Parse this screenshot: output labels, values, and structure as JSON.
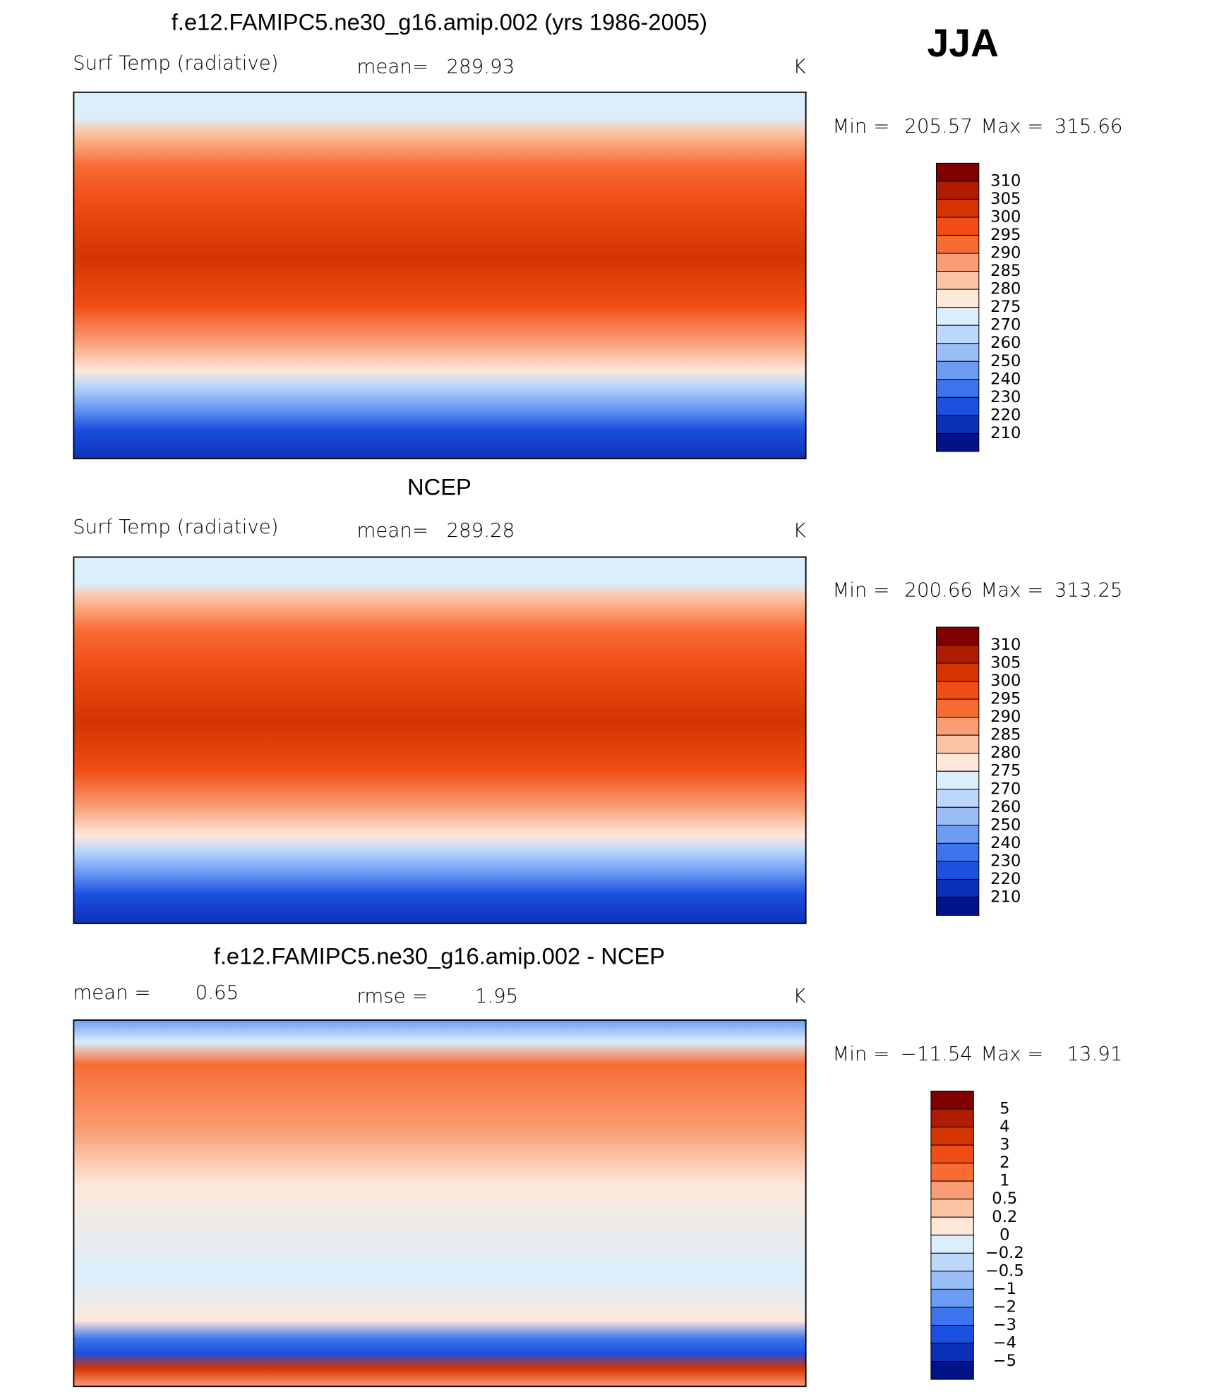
{
  "season": "JJA",
  "panels": [
    {
      "title": "f.e12.FAMIPC5.ne30_g16.amip.002 (yrs 1986-2005)",
      "left_label": "Surf Temp (radiative)",
      "stat_label": "mean=",
      "stat_value": "289.93",
      "units": "K",
      "min_label": "Min =",
      "min": "205.57",
      "max_label": "Max =",
      "max": "315.66",
      "colorbar": {
        "levels": [
          "310",
          "305",
          "300",
          "295",
          "290",
          "285",
          "280",
          "275",
          "270",
          "260",
          "250",
          "240",
          "230",
          "220",
          "210"
        ],
        "colors": [
          "#800000",
          "#b01c00",
          "#d43400",
          "#f04c14",
          "#f86c34",
          "#fa9c74",
          "#fcc4a4",
          "#fde8da",
          "#daeefc",
          "#bed8fb",
          "#9cbef8",
          "#6c9cf4",
          "#3c74ee",
          "#1c50e0",
          "#0c30b8",
          "#001488"
        ]
      }
    },
    {
      "title": "NCEP",
      "left_label": "Surf Temp (radiative)",
      "stat_label": "mean=",
      "stat_value": "289.28",
      "units": "K",
      "min_label": "Min =",
      "min": "200.66",
      "max_label": "Max =",
      "max": "313.25",
      "colorbar": {
        "levels": [
          "310",
          "305",
          "300",
          "295",
          "290",
          "285",
          "280",
          "275",
          "270",
          "260",
          "250",
          "240",
          "230",
          "220",
          "210"
        ],
        "colors": [
          "#800000",
          "#b01c00",
          "#d43400",
          "#f04c14",
          "#f86c34",
          "#fa9c74",
          "#fcc4a4",
          "#fde8da",
          "#daeefc",
          "#bed8fb",
          "#9cbef8",
          "#6c9cf4",
          "#3c74ee",
          "#1c50e0",
          "#0c30b8",
          "#001488"
        ]
      }
    },
    {
      "title": "f.e12.FAMIPC5.ne30_g16.amip.002 - NCEP",
      "left_label": "mean =",
      "left_value": "0.65",
      "stat_label": "rmse =",
      "stat_value": "1.95",
      "units": "K",
      "min_label": "Min =",
      "min": "−11.54",
      "max_label": "Max =",
      "max": "13.91",
      "colorbar": {
        "levels": [
          "5",
          "4",
          "3",
          "2",
          "1",
          "0.5",
          "0.2",
          "0",
          "−0.2",
          "−0.5",
          "−1",
          "−2",
          "−3",
          "−4",
          "−5"
        ],
        "colors": [
          "#800000",
          "#b01c00",
          "#d43400",
          "#f04c14",
          "#f86c34",
          "#fa9c74",
          "#fcc4a4",
          "#fde8da",
          "#daeefc",
          "#bed8fb",
          "#9cbef8",
          "#6c9cf4",
          "#3c74ee",
          "#1c50e0",
          "#0c30b8",
          "#001488"
        ]
      }
    }
  ]
}
